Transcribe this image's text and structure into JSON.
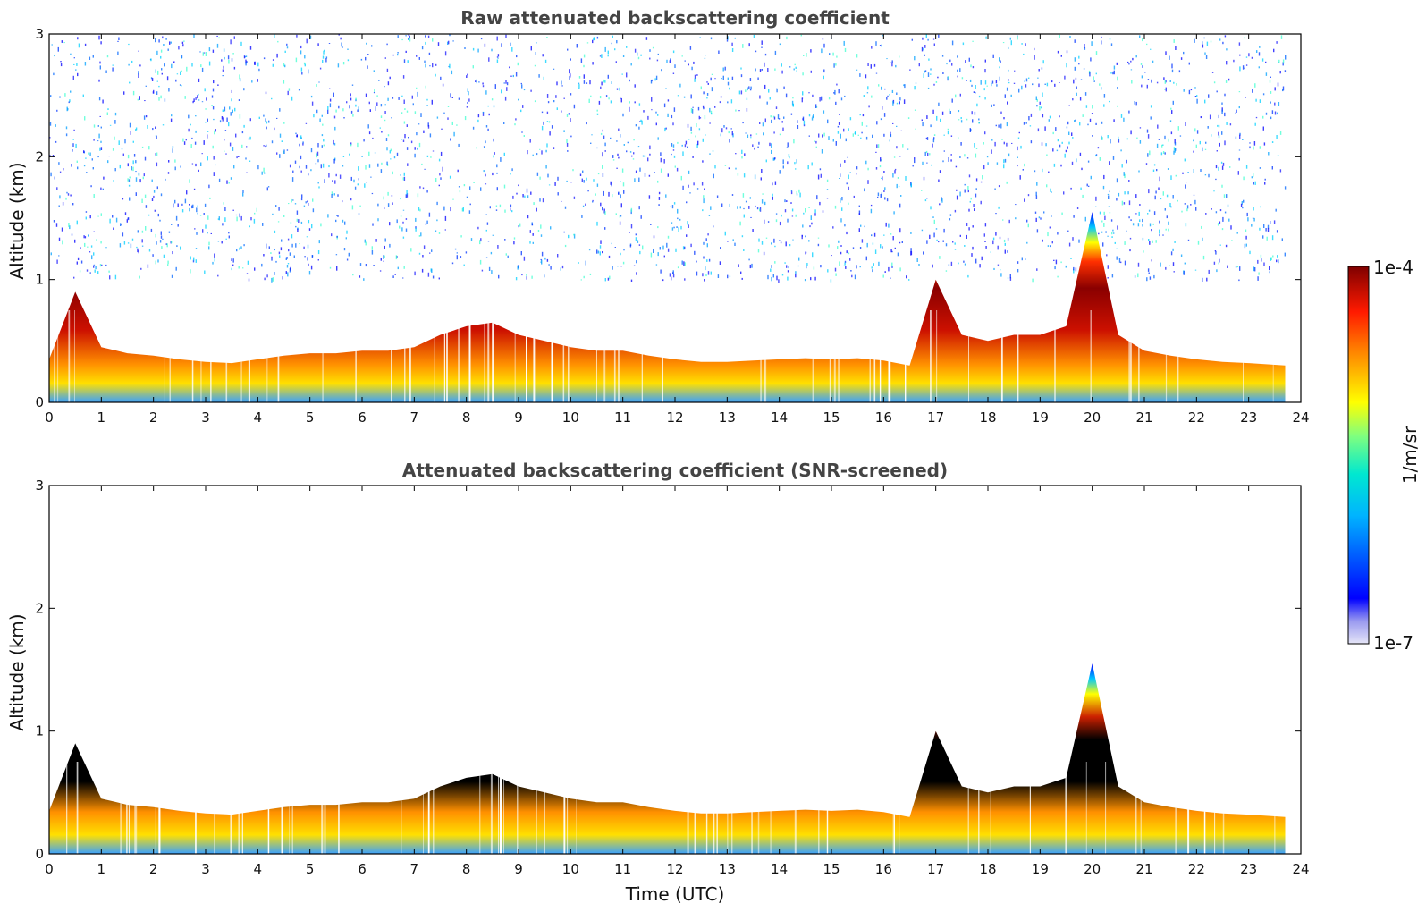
{
  "chart_data": [
    {
      "type": "heatmap",
      "title": "Raw attenuated backscattering coefficient",
      "xlabel": "",
      "ylabel": "Altitude (km)",
      "xlim": [
        0,
        24
      ],
      "ylim": [
        0,
        3
      ],
      "x_ticks": [
        "0",
        "1",
        "2",
        "3",
        "4",
        "5",
        "6",
        "7",
        "8",
        "9",
        "10",
        "11",
        "12",
        "13",
        "14",
        "15",
        "16",
        "17",
        "18",
        "19",
        "20",
        "21",
        "22",
        "23",
        "24"
      ],
      "y_ticks": [
        "0",
        "1",
        "2",
        "3"
      ],
      "x": [
        0,
        0.5,
        1,
        1.5,
        2,
        2.5,
        3,
        3.5,
        4,
        4.5,
        5,
        5.5,
        6,
        6.5,
        7,
        7.5,
        8,
        8.5,
        9,
        9.5,
        10,
        10.5,
        11,
        11.5,
        12,
        12.5,
        13,
        13.5,
        14,
        14.5,
        15,
        15.5,
        16,
        16.5,
        17,
        17.5,
        18,
        18.5,
        19,
        19.5,
        20,
        20.5,
        21,
        21.5,
        22,
        22.5,
        23,
        23.7
      ],
      "boundary_layer_top_km": [
        0.35,
        0.9,
        0.45,
        0.4,
        0.38,
        0.35,
        0.33,
        0.32,
        0.35,
        0.38,
        0.4,
        0.4,
        0.42,
        0.42,
        0.45,
        0.55,
        0.62,
        0.65,
        0.55,
        0.5,
        0.45,
        0.42,
        0.42,
        0.38,
        0.35,
        0.33,
        0.33,
        0.34,
        0.35,
        0.36,
        0.35,
        0.36,
        0.34,
        0.3,
        1.0,
        0.55,
        0.5,
        0.55,
        0.55,
        0.62,
        1.55,
        0.55,
        0.42,
        0.38,
        0.35,
        0.33,
        0.32,
        0.3
      ],
      "noise_above_km": 1.0,
      "colorscale": "jet",
      "color_range": [
        "1e-7",
        "1e-4"
      ]
    },
    {
      "type": "heatmap",
      "title": "Attenuated backscattering coefficient (SNR-screened)",
      "xlabel": "Time (UTC)",
      "ylabel": "Altitude (km)",
      "xlim": [
        0,
        24
      ],
      "ylim": [
        0,
        3
      ],
      "x_ticks": [
        "0",
        "1",
        "2",
        "3",
        "4",
        "5",
        "6",
        "7",
        "8",
        "9",
        "10",
        "11",
        "12",
        "13",
        "14",
        "15",
        "16",
        "17",
        "18",
        "19",
        "20",
        "21",
        "22",
        "23",
        "24"
      ],
      "y_ticks": [
        "0",
        "1",
        "2",
        "3"
      ],
      "x": [
        0,
        0.5,
        1,
        1.5,
        2,
        2.5,
        3,
        3.5,
        4,
        4.5,
        5,
        5.5,
        6,
        6.5,
        7,
        7.5,
        8,
        8.5,
        9,
        9.5,
        10,
        10.5,
        11,
        11.5,
        12,
        12.5,
        13,
        13.5,
        14,
        14.5,
        15,
        15.5,
        16,
        16.5,
        17,
        17.5,
        18,
        18.5,
        19,
        19.5,
        20,
        20.5,
        21,
        21.5,
        22,
        22.5,
        23,
        23.7
      ],
      "boundary_layer_top_km": [
        0.35,
        0.9,
        0.45,
        0.4,
        0.38,
        0.35,
        0.33,
        0.32,
        0.35,
        0.38,
        0.4,
        0.4,
        0.42,
        0.42,
        0.45,
        0.55,
        0.62,
        0.65,
        0.55,
        0.5,
        0.45,
        0.42,
        0.42,
        0.38,
        0.35,
        0.33,
        0.33,
        0.34,
        0.35,
        0.36,
        0.35,
        0.36,
        0.34,
        0.3,
        1.0,
        0.55,
        0.5,
        0.55,
        0.55,
        0.62,
        1.55,
        0.55,
        0.42,
        0.38,
        0.35,
        0.33,
        0.32,
        0.3
      ],
      "colorscale": "jet",
      "color_range": [
        "1e-7",
        "1e-4"
      ]
    }
  ],
  "colorbar": {
    "label": "1/m/sr",
    "max_label": "1e-4",
    "min_label": "1e-7",
    "colors": [
      "#e6e6f7",
      "#0000ff",
      "#00c8ff",
      "#7fff7f",
      "#ffff00",
      "#ff7f00",
      "#ff0000",
      "#7f0000"
    ]
  }
}
